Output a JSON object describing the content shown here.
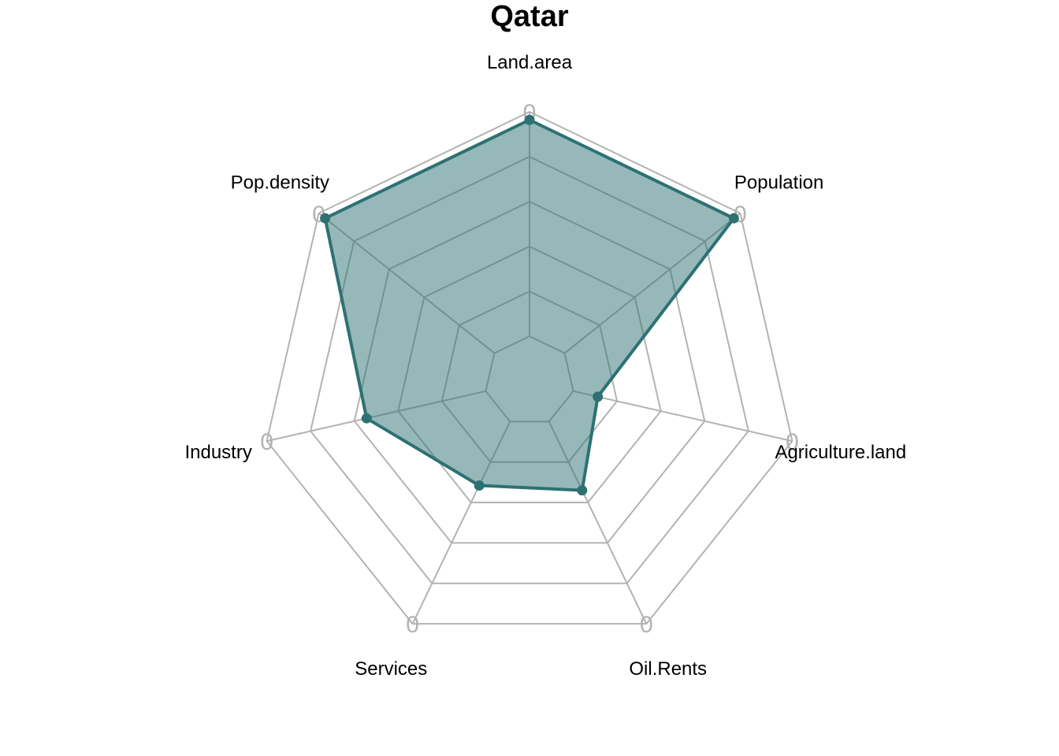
{
  "chart_data": {
    "type": "radar",
    "title": "Qatar",
    "axes": [
      "Land.area",
      "Population",
      "Agriculture.land",
      "Oil.Rents",
      "Services",
      "Industry",
      "Pop.density"
    ],
    "rlim": [
      0,
      1
    ],
    "grid_levels": 6,
    "ring_label": "0",
    "series": [
      {
        "values": [
          0.97,
          0.97,
          0.26,
          0.45,
          0.43,
          0.62,
          0.97
        ]
      }
    ],
    "grid": true,
    "colors": {
      "series_line": "#2d7173",
      "series_fill": "#2d7173",
      "grid": "#b3b3b3",
      "axis_label": "#000000"
    }
  }
}
